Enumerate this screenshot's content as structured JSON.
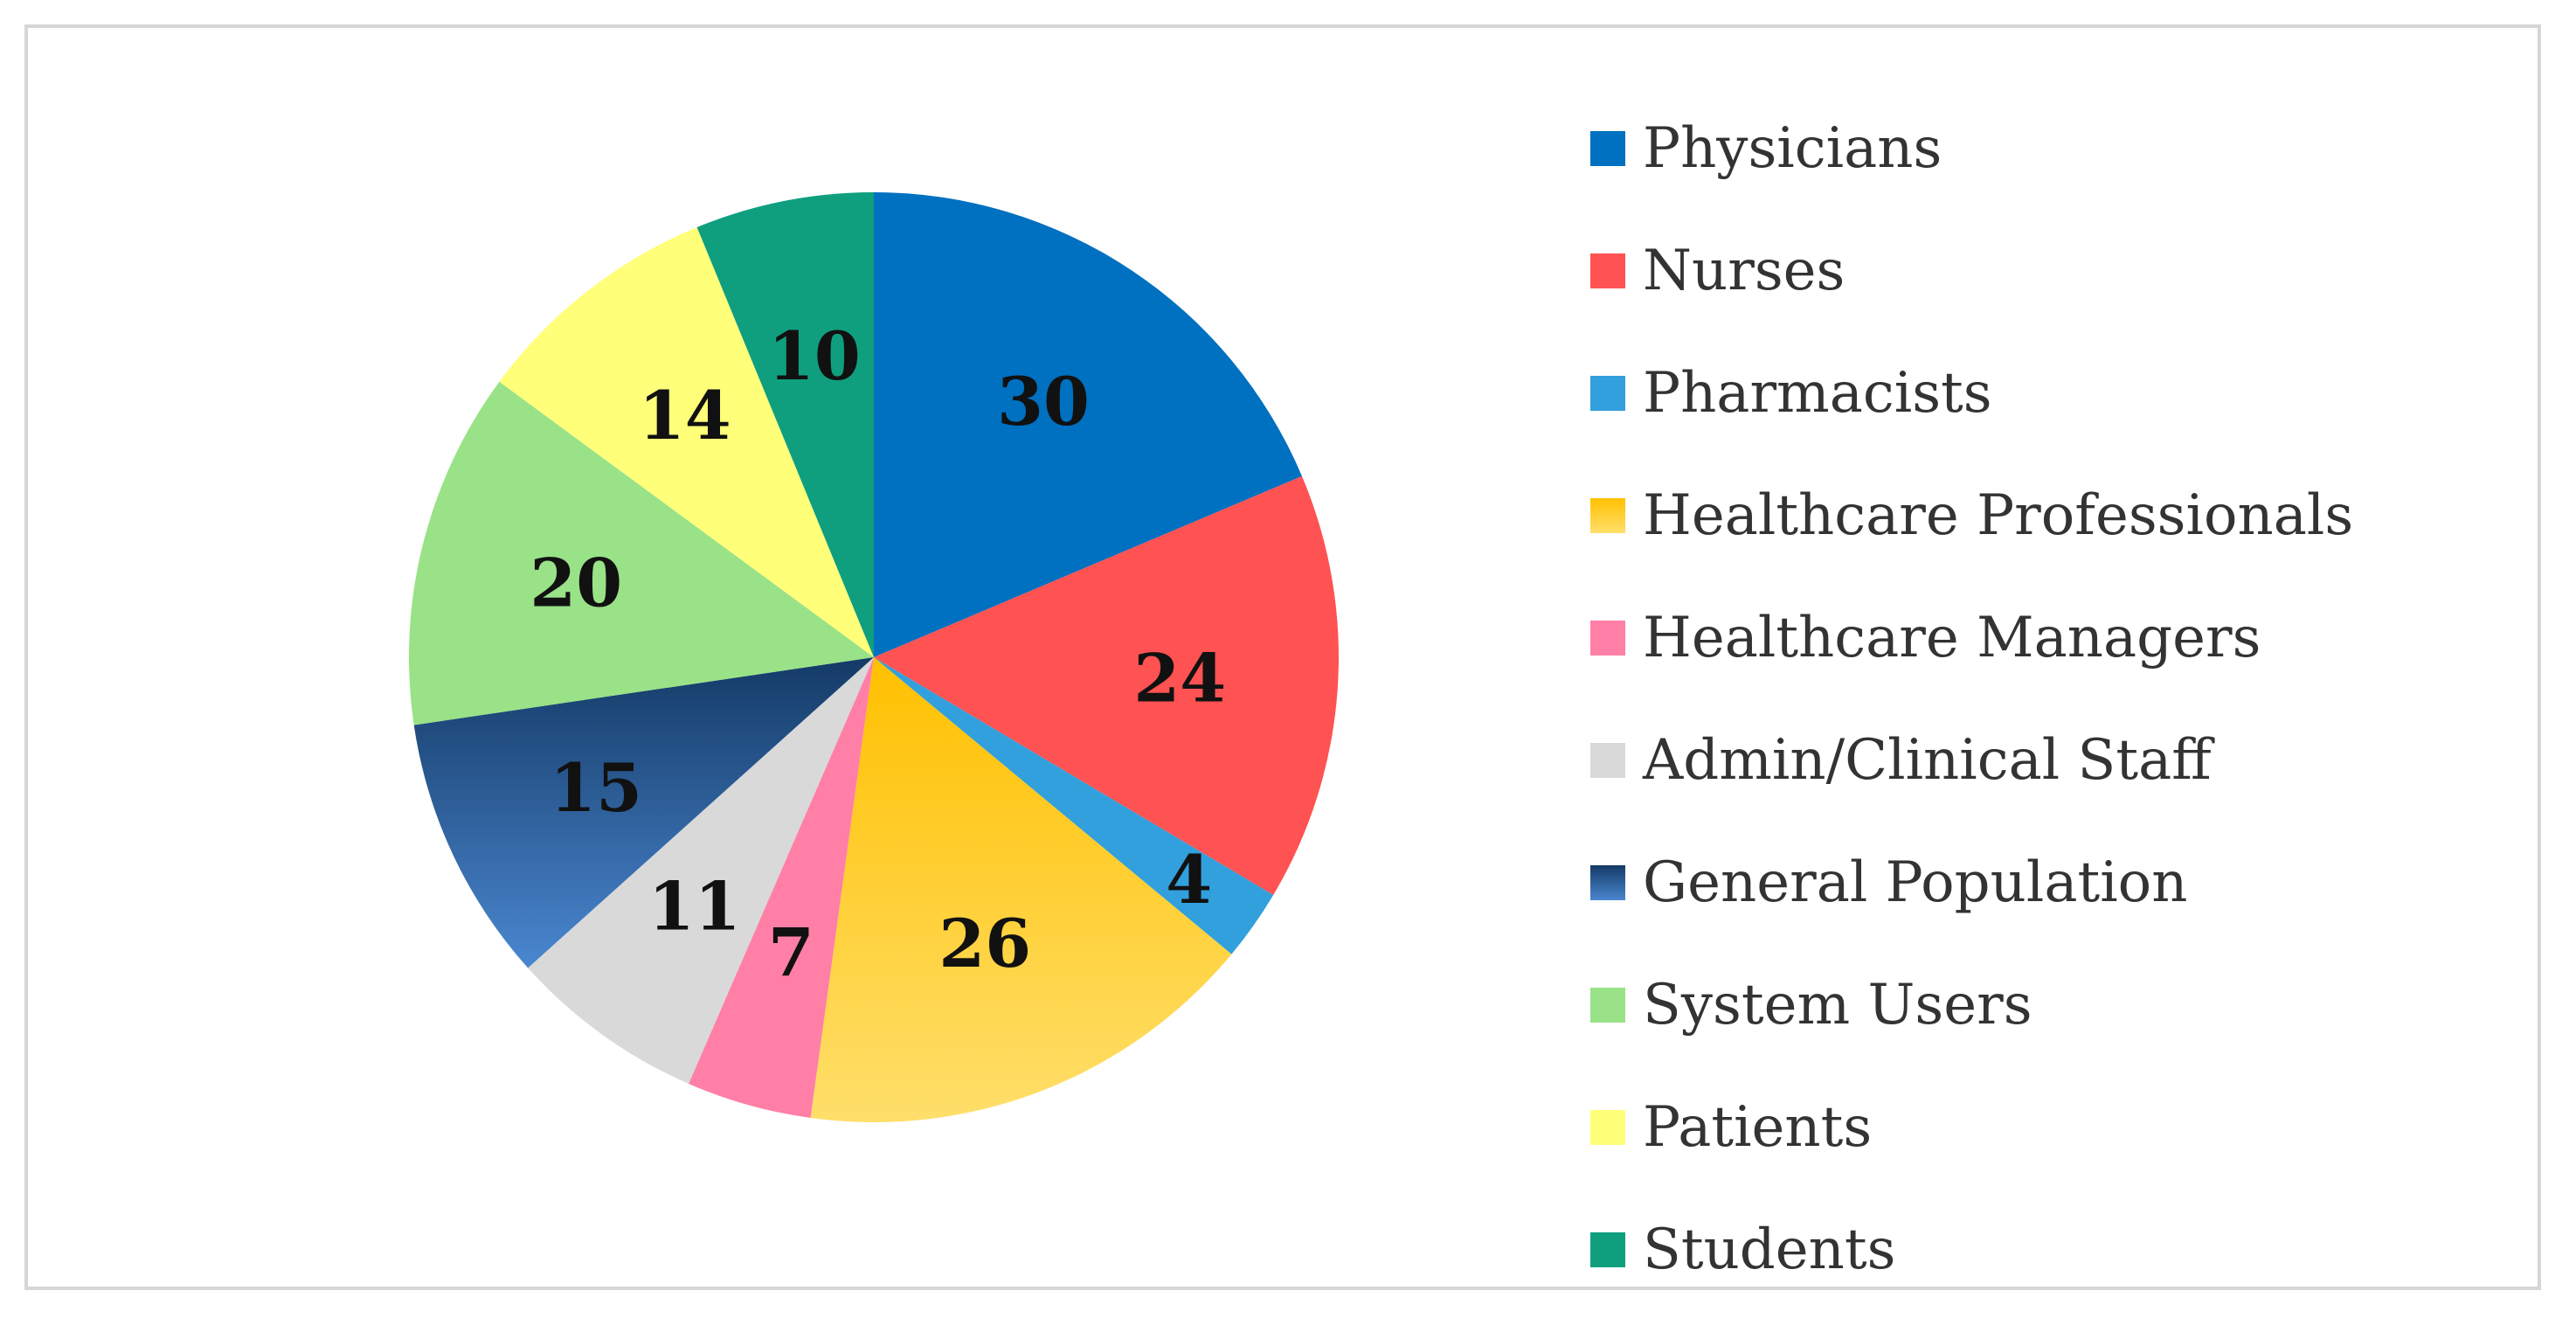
{
  "chart_data": {
    "type": "pie",
    "categories": [
      "Physicians",
      "Nurses",
      "Pharmacists",
      "Healthcare Professionals",
      "Healthcare Managers",
      "Admin/Clinical Staff",
      "General Population",
      "System Users",
      "Patients",
      "Students"
    ],
    "values": [
      30,
      24,
      4,
      26,
      7,
      11,
      15,
      20,
      14,
      10
    ],
    "colors": [
      "#0070c0",
      "#ff5252",
      "#31a0dc",
      "#ffcc33",
      "#ff7fa7",
      "#d9d9d9",
      "#2f5f9e",
      "#99e287",
      "#ffff7a",
      "#0f9f7f"
    ],
    "title": "",
    "legend_position": "right"
  }
}
